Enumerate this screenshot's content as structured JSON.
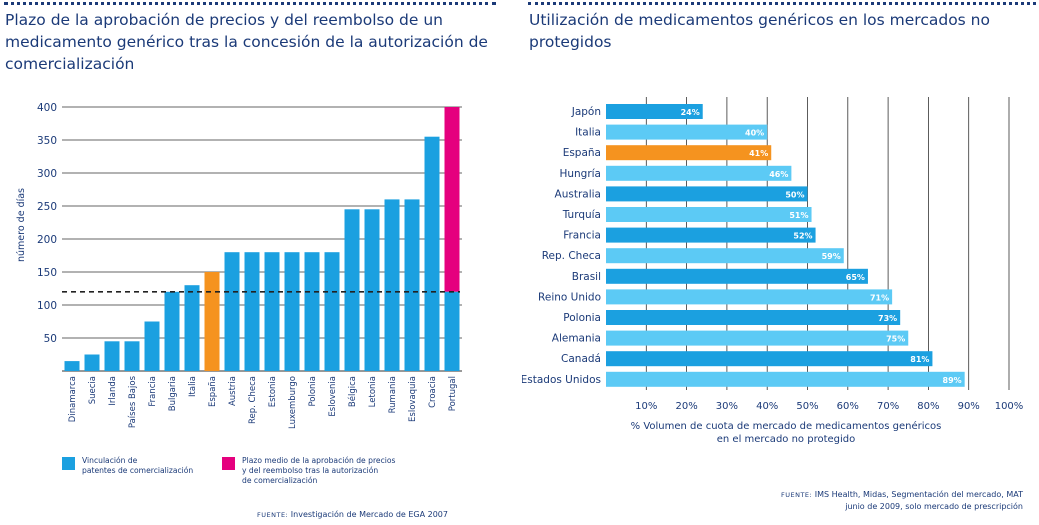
{
  "left_chart": {
    "title": "Plazo de la aprobación de precios y del reembolso de un medicamento genérico tras la concesión de la autorización de comercialización",
    "legend": {
      "patent_label": "Vinculación de\npatentes de comercialización",
      "average_label": "Plazo medio de la aprobación de precios\ny del reembolso tras la autorización\nde comercialización"
    },
    "source_label": "FUENTE:",
    "source_text": "Investigación de Mercado de EGA 2007"
  },
  "right_chart": {
    "title": "Utilización de medicamentos genéricos en los mercados no protegidos",
    "source_label": "FUENTE:",
    "source_text": "IMS Health, Midas, Segmentación del mercado, MAT\njunio de 2009, solo mercado de prescripción"
  },
  "colors": {
    "blue": "#1ba0e0",
    "light_blue": "#5ccaf5",
    "orange": "#f5931f",
    "magenta": "#e5007e",
    "text": "#1b3a78"
  },
  "chart_data": [
    {
      "type": "bar",
      "title": "Plazo de la aprobación de precios y del reembolso de un medicamento genérico tras la concesión de la autorización de comercialización",
      "ylabel": "número de días",
      "xlabel": "",
      "ylim": [
        0,
        400
      ],
      "yticks": [
        50,
        100,
        150,
        200,
        250,
        300,
        350,
        400
      ],
      "reference_line": 120,
      "categories": [
        "Dinamarca",
        "Suecia",
        "Irlanda",
        "Países Bajos",
        "Francia",
        "Bulgaria",
        "Italia",
        "España",
        "Austria",
        "Rep. Checa",
        "Estonia",
        "Luxemburgo",
        "Polonia",
        "Eslovenia",
        "Bélgica",
        "Letonia",
        "Rumania",
        "Eslovaquia",
        "Croacia",
        "Portugal"
      ],
      "values": [
        15,
        25,
        45,
        45,
        75,
        120,
        130,
        150,
        180,
        180,
        180,
        180,
        180,
        180,
        245,
        245,
        260,
        260,
        355,
        400
      ],
      "highlight": {
        "España": "orange",
        "Portugal": "magenta"
      },
      "grid": true
    },
    {
      "type": "bar",
      "orientation": "horizontal",
      "title": "Utilización de medicamentos genéricos en los mercados no protegidos",
      "xlabel": "% Volumen de cuota de mercado de medicamentos genéricos\nen el mercado no protegido",
      "ylabel": "",
      "xlim": [
        0,
        100
      ],
      "xticks": [
        "10%",
        "20%",
        "30%",
        "40%",
        "50%",
        "60%",
        "70%",
        "80%",
        "90%",
        "100%"
      ],
      "categories": [
        "Japón",
        "Italia",
        "España",
        "Hungría",
        "Australia",
        "Turquía",
        "Francia",
        "Rep. Checa",
        "Brasil",
        "Reino Unido",
        "Polonia",
        "Alemania",
        "Canadá",
        "Estados Unidos"
      ],
      "values": [
        24,
        40,
        41,
        46,
        50,
        51,
        52,
        59,
        65,
        71,
        73,
        75,
        81,
        89
      ],
      "value_labels": [
        "24%",
        "40%",
        "41%",
        "46%",
        "50%",
        "51%",
        "52%",
        "59%",
        "65%",
        "71%",
        "73%",
        "75%",
        "81%",
        "89%"
      ],
      "highlight": {
        "España": "orange"
      },
      "grid": true
    }
  ]
}
